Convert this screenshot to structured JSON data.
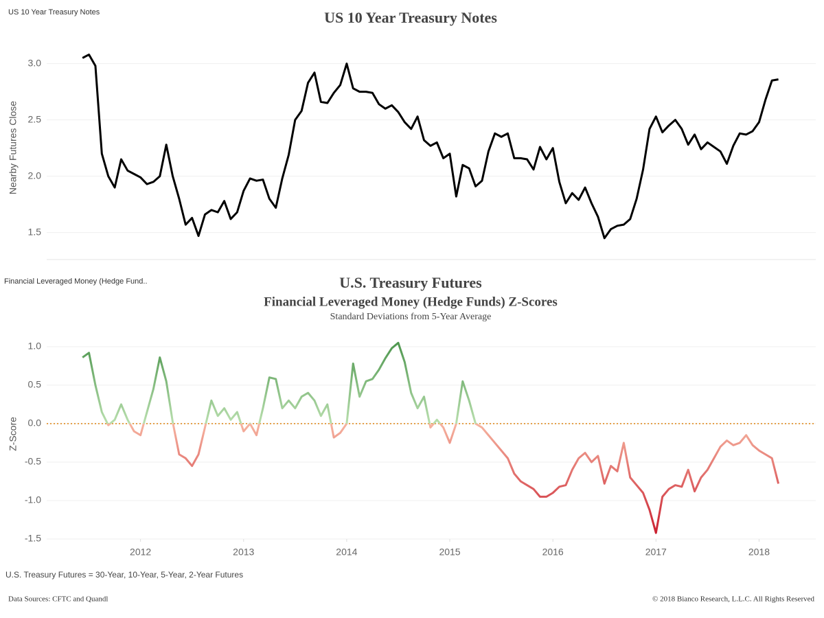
{
  "captions": [
    "US 10 Year Treasury Notes",
    "Financial Leveraged Money (Hedge Fund.."
  ],
  "chart_data": [
    {
      "type": "line",
      "title": "US 10 Year Treasury Notes",
      "y_label": "Nearby Futures Close",
      "color": "#000000",
      "x": [
        2011.4375,
        2011.5,
        2011.5625,
        2011.625,
        2011.6875,
        2011.75,
        2011.8125,
        2011.875,
        2011.9375,
        2012,
        2012.0625,
        2012.125,
        2012.1875,
        2012.25,
        2012.3125,
        2012.375,
        2012.4375,
        2012.5,
        2012.5625,
        2012.625,
        2012.6875,
        2012.75,
        2012.8125,
        2012.875,
        2012.9375,
        2013,
        2013.0625,
        2013.125,
        2013.1875,
        2013.25,
        2013.3125,
        2013.375,
        2013.4375,
        2013.5,
        2013.5625,
        2013.625,
        2013.6875,
        2013.75,
        2013.8125,
        2013.875,
        2013.9375,
        2014,
        2014.0625,
        2014.125,
        2014.1875,
        2014.25,
        2014.3125,
        2014.375,
        2014.4375,
        2014.5,
        2014.5625,
        2014.625,
        2014.6875,
        2014.75,
        2014.8125,
        2014.875,
        2014.9375,
        2015,
        2015.0625,
        2015.125,
        2015.1875,
        2015.25,
        2015.3125,
        2015.375,
        2015.4375,
        2015.5,
        2015.5625,
        2015.625,
        2015.6875,
        2015.75,
        2015.8125,
        2015.875,
        2015.9375,
        2016,
        2016.0625,
        2016.125,
        2016.1875,
        2016.25,
        2016.3125,
        2016.375,
        2016.4375,
        2016.5,
        2016.5625,
        2016.625,
        2016.6875,
        2016.75,
        2016.8125,
        2016.875,
        2016.9375,
        2017,
        2017.0625,
        2017.125,
        2017.1875,
        2017.25,
        2017.3125,
        2017.375,
        2017.4375,
        2017.5,
        2017.5625,
        2017.625,
        2017.6875,
        2017.75,
        2017.8125,
        2017.875,
        2017.9375,
        2018,
        2018.0625,
        2018.125,
        2018.1875
      ],
      "values": [
        3.05,
        3.08,
        2.98,
        2.2,
        2.0,
        1.9,
        2.15,
        2.05,
        2.02,
        1.99,
        1.93,
        1.95,
        2.0,
        2.28,
        2.0,
        1.8,
        1.57,
        1.63,
        1.47,
        1.66,
        1.7,
        1.68,
        1.78,
        1.62,
        1.68,
        1.87,
        1.98,
        1.96,
        1.97,
        1.8,
        1.72,
        1.98,
        2.19,
        2.5,
        2.58,
        2.83,
        2.92,
        2.66,
        2.65,
        2.74,
        2.81,
        3.0,
        2.78,
        2.75,
        2.75,
        2.74,
        2.64,
        2.6,
        2.63,
        2.57,
        2.48,
        2.42,
        2.53,
        2.32,
        2.27,
        2.3,
        2.16,
        2.2,
        1.82,
        2.1,
        2.07,
        1.91,
        1.96,
        2.22,
        2.38,
        2.35,
        2.38,
        2.16,
        2.16,
        2.15,
        2.06,
        2.26,
        2.15,
        2.25,
        1.95,
        1.76,
        1.85,
        1.79,
        1.9,
        1.76,
        1.64,
        1.45,
        1.53,
        1.56,
        1.57,
        1.62,
        1.8,
        2.06,
        2.42,
        2.53,
        2.39,
        2.45,
        2.5,
        2.42,
        2.28,
        2.37,
        2.24,
        2.3,
        2.26,
        2.22,
        2.11,
        2.27,
        2.38,
        2.37,
        2.4,
        2.48,
        2.68,
        2.85,
        2.86
      ],
      "xlim": [
        2011.09,
        2018.55
      ],
      "ylim": [
        1.26,
        3.26
      ],
      "yticks": [
        1.5,
        {
          "value": 2,
          "label": "2.0"
        },
        2.5,
        {
          "value": 3,
          "label": "3.0"
        }
      ],
      "grid": true
    },
    {
      "type": "line",
      "title": "U.S. Treasury Futures",
      "subtitle": "Financial Leveraged Money (Hedge Funds) Z-Scores",
      "note": "Standard Deviations from 5-Year Average",
      "y_label": "Z-Score",
      "x": [
        2011.4375,
        2011.5,
        2011.5625,
        2011.625,
        2011.6875,
        2011.75,
        2011.8125,
        2011.875,
        2011.9375,
        2012,
        2012.0625,
        2012.125,
        2012.1875,
        2012.25,
        2012.3125,
        2012.375,
        2012.4375,
        2012.5,
        2012.5625,
        2012.625,
        2012.6875,
        2012.75,
        2012.8125,
        2012.875,
        2012.9375,
        2013,
        2013.0625,
        2013.125,
        2013.1875,
        2013.25,
        2013.3125,
        2013.375,
        2013.4375,
        2013.5,
        2013.5625,
        2013.625,
        2013.6875,
        2013.75,
        2013.8125,
        2013.875,
        2013.9375,
        2014,
        2014.0625,
        2014.125,
        2014.1875,
        2014.25,
        2014.3125,
        2014.375,
        2014.4375,
        2014.5,
        2014.5625,
        2014.625,
        2014.6875,
        2014.75,
        2014.8125,
        2014.875,
        2014.9375,
        2015,
        2015.0625,
        2015.125,
        2015.1875,
        2015.25,
        2015.3125,
        2015.375,
        2015.4375,
        2015.5,
        2015.5625,
        2015.625,
        2015.6875,
        2015.75,
        2015.8125,
        2015.875,
        2015.9375,
        2016,
        2016.0625,
        2016.125,
        2016.1875,
        2016.25,
        2016.3125,
        2016.375,
        2016.4375,
        2016.5,
        2016.5625,
        2016.625,
        2016.6875,
        2016.75,
        2016.8125,
        2016.875,
        2016.9375,
        2017,
        2017.0625,
        2017.125,
        2017.1875,
        2017.25,
        2017.3125,
        2017.375,
        2017.4375,
        2017.5,
        2017.5625,
        2017.625,
        2017.6875,
        2017.75,
        2017.8125,
        2017.875,
        2017.9375,
        2018,
        2018.0625,
        2018.125,
        2018.1875
      ],
      "values": [
        0.86,
        0.92,
        0.5,
        0.15,
        -0.02,
        0.05,
        0.25,
        0.05,
        -0.1,
        -0.15,
        0.15,
        0.45,
        0.86,
        0.55,
        0.02,
        -0.4,
        -0.45,
        -0.55,
        -0.4,
        -0.05,
        0.3,
        0.1,
        0.2,
        0.05,
        0.15,
        -0.1,
        0.0,
        -0.15,
        0.2,
        0.6,
        0.58,
        0.2,
        0.3,
        0.2,
        0.35,
        0.4,
        0.3,
        0.1,
        0.25,
        -0.18,
        -0.12,
        0.0,
        0.78,
        0.35,
        0.55,
        0.58,
        0.7,
        0.85,
        0.98,
        1.05,
        0.8,
        0.4,
        0.2,
        0.35,
        -0.05,
        0.05,
        -0.05,
        -0.25,
        0.0,
        0.55,
        0.3,
        0.0,
        -0.05,
        -0.15,
        -0.25,
        -0.35,
        -0.45,
        -0.65,
        -0.75,
        -0.8,
        -0.85,
        -0.95,
        -0.95,
        -0.9,
        -0.82,
        -0.8,
        -0.6,
        -0.45,
        -0.38,
        -0.5,
        -0.42,
        -0.78,
        -0.55,
        -0.62,
        -0.25,
        -0.7,
        -0.8,
        -0.9,
        -1.12,
        -1.42,
        -0.95,
        -0.85,
        -0.8,
        -0.82,
        -0.6,
        -0.88,
        -0.7,
        -0.6,
        -0.45,
        -0.3,
        -0.22,
        -0.28,
        -0.25,
        -0.15,
        -0.28,
        -0.35,
        -0.4,
        -0.45,
        -0.78
      ],
      "color_scale": {
        "positive": "#3b8a3e",
        "near_zero_positive": "#b9dfae",
        "near_zero_negative": "#f6b4a0",
        "negative": "#c8192b"
      },
      "reference_line": {
        "value": 0,
        "color": "#e08a1e"
      },
      "xlim": [
        2011.09,
        2018.55
      ],
      "ylim": [
        -1.5,
        1.24
      ],
      "xticks": [
        2012,
        2013,
        2014,
        2015,
        2016,
        2017,
        2018
      ],
      "yticks": [
        {
          "value": -1.5,
          "label": "-1.5"
        },
        {
          "value": -1,
          "label": "-1.0"
        },
        -0.5,
        {
          "value": 0,
          "label": "0.0"
        },
        0.5,
        {
          "value": 1,
          "label": "1.0"
        }
      ],
      "grid": true
    }
  ],
  "footer": {
    "note": "U.S. Treasury Futures = 30-Year, 10-Year, 5-Year, 2-Year Futures",
    "sources": "Data Sources: CFTC and Quandl",
    "copyright": "© 2018 Bianco Research, L.L.C. All Rights Reserved"
  }
}
